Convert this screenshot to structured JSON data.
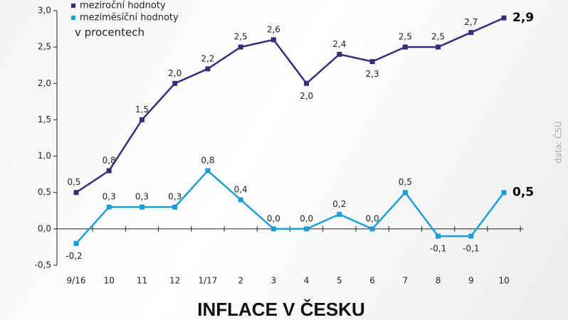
{
  "chart_data": {
    "type": "line",
    "title": "INFLACE V ČESKU",
    "subtitle": "v procentech",
    "source": "data: ČSÚ",
    "categories": [
      "9/16",
      "10",
      "11",
      "12",
      "1/17",
      "2",
      "3",
      "4",
      "5",
      "6",
      "7",
      "8",
      "9",
      "10"
    ],
    "series": [
      {
        "name": "meziroční hodnoty",
        "color": "#3a2a7c",
        "values": [
          0.5,
          0.8,
          1.5,
          2.0,
          2.2,
          2.5,
          2.6,
          2.0,
          2.4,
          2.3,
          2.5,
          2.5,
          2.7,
          2.9
        ],
        "value_labels": [
          "0,5",
          "0,8",
          "1,5",
          "2,0",
          "2,2",
          "2,5",
          "2,6",
          "2,0",
          "2,4",
          "2,3",
          "2,5",
          "2,5",
          "2,7",
          "2,9"
        ]
      },
      {
        "name": "meziměsíční hodnoty",
        "color": "#1b9ed6",
        "values": [
          -0.2,
          0.3,
          0.3,
          0.3,
          0.8,
          0.4,
          0.0,
          0.0,
          0.2,
          0.0,
          0.5,
          -0.1,
          -0.1,
          0.5
        ],
        "value_labels": [
          "-0,2",
          "0,3",
          "0,3",
          "0,3",
          "0,8",
          "0,4",
          "0,0",
          "0,0",
          "0,2",
          "0,0",
          "0,5",
          "-0,1",
          "-0,1",
          "0,5"
        ]
      }
    ],
    "ylim": [
      -0.5,
      3.0
    ],
    "yticks": [
      {
        "value": -0.5,
        "label": "-0,5"
      },
      {
        "value": 0,
        "label": "0,0"
      },
      {
        "value": 0.5,
        "label": "0,5"
      },
      {
        "value": 1.0,
        "label": "1,0"
      },
      {
        "value": 1.5,
        "label": "1,5"
      },
      {
        "value": 2.0,
        "label": "2,0"
      },
      {
        "value": 2.5,
        "label": "2,5"
      },
      {
        "value": 3.0,
        "label": "3,0"
      }
    ]
  }
}
